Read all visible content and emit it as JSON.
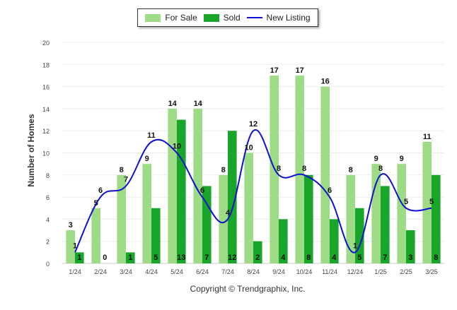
{
  "chart_data": {
    "type": "bar",
    "categories": [
      "1/24",
      "2/24",
      "3/24",
      "4/24",
      "5/24",
      "6/24",
      "7/24",
      "8/24",
      "9/24",
      "10/24",
      "11/24",
      "12/24",
      "1/25",
      "2/25",
      "3/25"
    ],
    "series": [
      {
        "name": "For Sale",
        "type": "bar",
        "color": "#9edb86",
        "values": [
          3,
          5,
          8,
          9,
          14,
          14,
          8,
          10,
          17,
          17,
          16,
          8,
          9,
          9,
          11
        ]
      },
      {
        "name": "Sold",
        "type": "bar",
        "color": "#19a52a",
        "values": [
          1,
          0,
          1,
          5,
          13,
          7,
          12,
          2,
          4,
          8,
          4,
          5,
          7,
          3,
          8
        ]
      },
      {
        "name": "New Listing",
        "type": "line",
        "color": "#1010d0",
        "values": [
          1,
          6,
          7,
          11,
          10,
          6,
          4,
          12,
          8,
          8,
          6,
          1,
          8,
          5,
          5
        ]
      }
    ],
    "ylabel": "Number of Homes",
    "yticks": [
      0,
      2,
      4,
      6,
      8,
      10,
      12,
      14,
      16,
      18,
      20
    ],
    "ylim": [
      0,
      20
    ],
    "legend_position": "top-center",
    "grid": true
  },
  "footer": {
    "copyright": "Copyright © Trendgraphix, Inc."
  }
}
